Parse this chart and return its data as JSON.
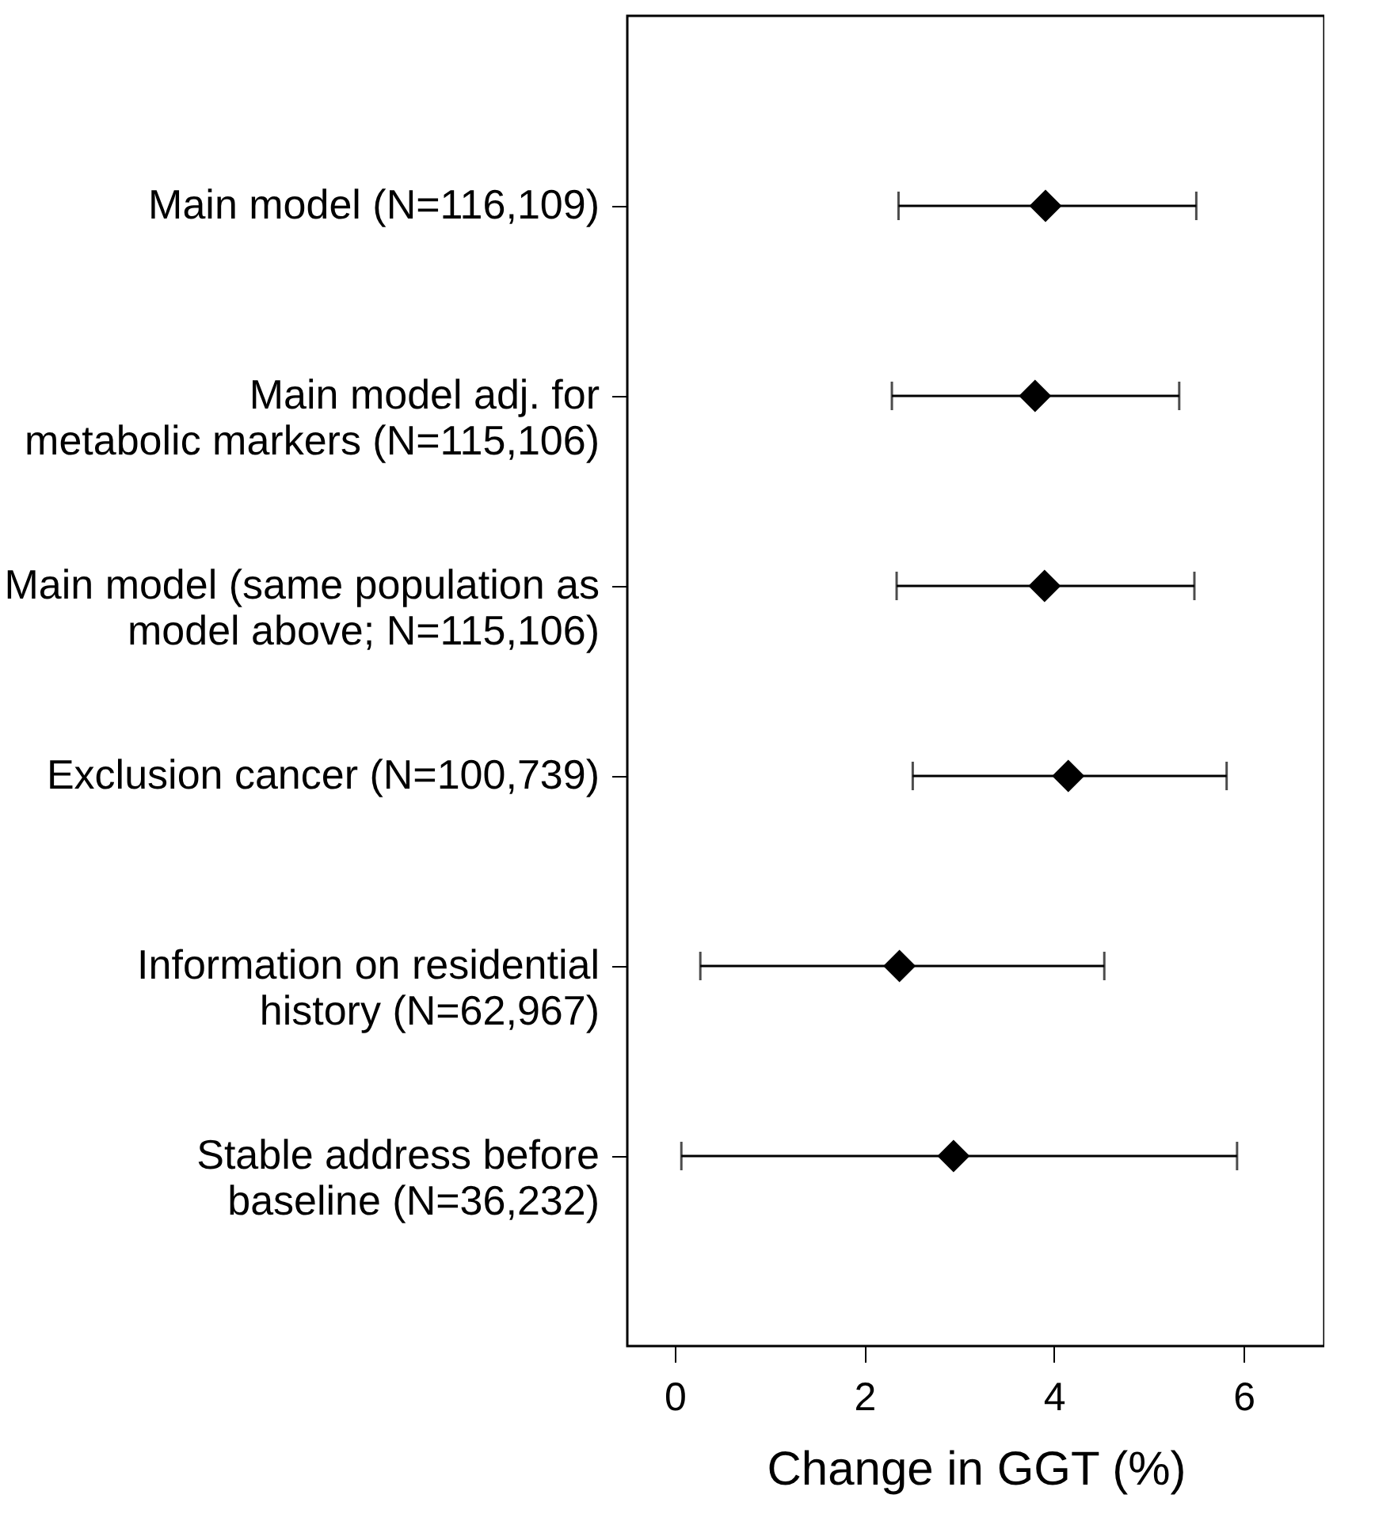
{
  "chart_data": {
    "type": "scatter",
    "orientation": "horizontal",
    "marker": "diamond",
    "xlabel": "Change in GGT (%)",
    "categories": [
      "Main model (N=116,109)",
      "Main model adj. for\nmetabolic markers (N=115,106)",
      "Main model (same population as\nmodel above; N=115,106)",
      "Exclusion cancer (N=100,739)",
      "Information on residential\nhistory (N=62,967)",
      "Stable address before\nbaseline (N=36,232)"
    ],
    "values": [
      3.91,
      3.8,
      3.9,
      4.15,
      2.37,
      2.94
    ],
    "errors": [
      [
        2.36,
        5.5
      ],
      [
        2.29,
        5.32
      ],
      [
        2.34,
        5.48
      ],
      [
        2.51,
        5.82
      ],
      [
        0.27,
        4.53
      ],
      [
        0.07,
        5.93
      ]
    ],
    "color": "#000000",
    "xlim": [
      -0.5,
      6.85
    ],
    "xticks": [
      0,
      2,
      4,
      6
    ],
    "grid": false
  }
}
